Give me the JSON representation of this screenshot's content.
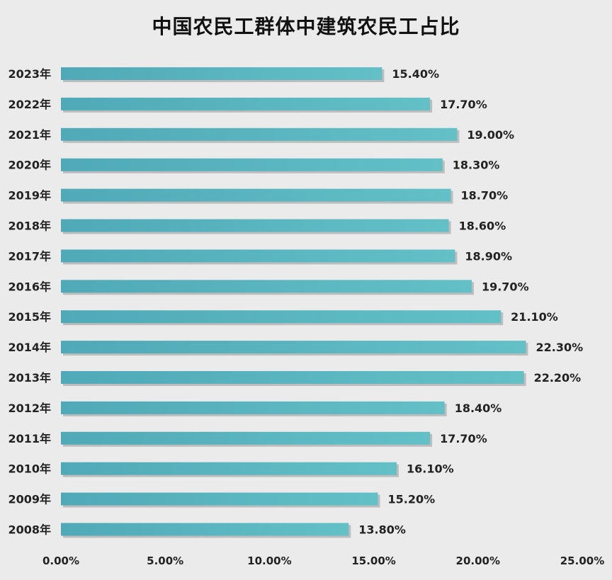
{
  "chart_data": {
    "type": "bar",
    "orientation": "horizontal",
    "title": "中国农民工群体中建筑农民工占比",
    "categories": [
      "2023年",
      "2022年",
      "2021年",
      "2020年",
      "2019年",
      "2018年",
      "2017年",
      "2016年",
      "2015年",
      "2014年",
      "2013年",
      "2012年",
      "2011年",
      "2010年",
      "2009年",
      "2008年"
    ],
    "values": [
      15.4,
      17.7,
      19.0,
      18.3,
      18.7,
      18.6,
      18.9,
      19.7,
      21.1,
      22.3,
      22.2,
      18.4,
      17.7,
      16.1,
      15.2,
      13.8
    ],
    "value_labels": [
      "15.40%",
      "17.70%",
      "19.00%",
      "18.30%",
      "18.70%",
      "18.60%",
      "18.90%",
      "19.70%",
      "21.10%",
      "22.30%",
      "22.20%",
      "18.40%",
      "17.70%",
      "16.10%",
      "15.20%",
      "13.80%"
    ],
    "xlim": [
      0,
      25
    ],
    "x_ticks": [
      0,
      5,
      10,
      15,
      20,
      25
    ],
    "x_tick_labels": [
      "0.00%",
      "5.00%",
      "10.00%",
      "15.00%",
      "20.00%",
      "25.00%"
    ],
    "xlabel": "",
    "ylabel": "",
    "grid": false,
    "legend": "none",
    "bar_color": "#5ab5c0",
    "background_color": "#ebebeb"
  }
}
